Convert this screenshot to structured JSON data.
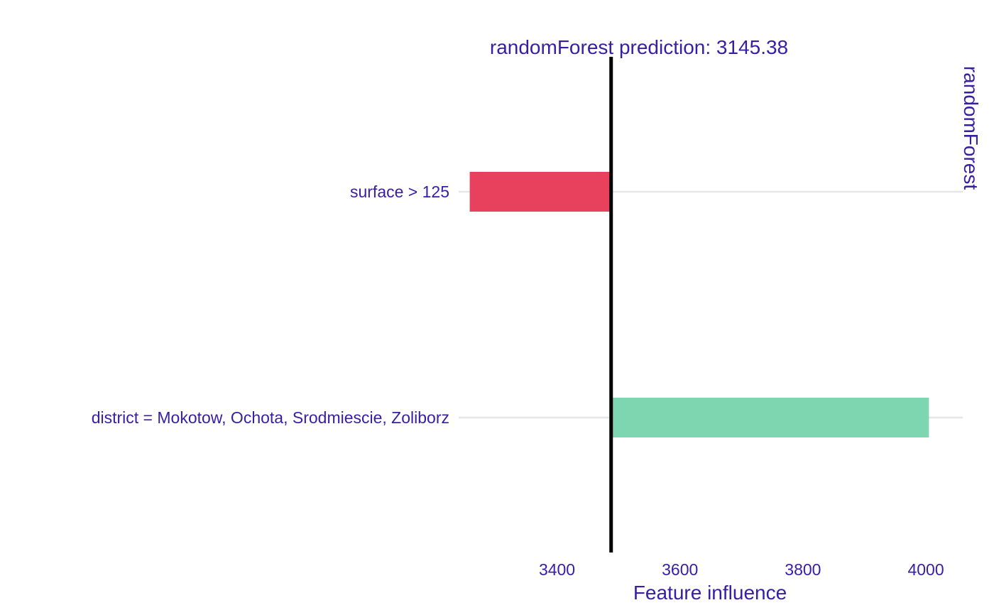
{
  "colors": {
    "text": "#371ea3",
    "negative": "#e8415e",
    "positive": "#7dd6af",
    "baseline": "#000000",
    "gridline": "#e6e6e6",
    "background": "#ffffff"
  },
  "chart_data": {
    "type": "bar",
    "orientation": "horizontal",
    "subtype": "break-down",
    "title": "randomForest prediction:  3145.38",
    "facet_label": "randomForest",
    "xlabel": "Feature influence",
    "ylabel": "",
    "xlim": [
      3240,
      4060
    ],
    "x_ticks": [
      3400,
      3600,
      3800,
      4000
    ],
    "x_tick_labels": [
      "3400",
      "3600",
      "3800",
      "4000"
    ],
    "baseline": 3488,
    "categories": [
      "surface > 125",
      "district = Mokotow, Ochota, Srodmiescie, Zoliborz"
    ],
    "bars": [
      {
        "label": "surface > 125",
        "start": 3488,
        "end": 3258,
        "sign": "negative"
      },
      {
        "label": "district = Mokotow, Ochota, Srodmiescie, Zoliborz",
        "start": 3488,
        "end": 4005,
        "sign": "positive"
      }
    ],
    "grid": {
      "x": false,
      "y": true
    },
    "legend": "none"
  }
}
